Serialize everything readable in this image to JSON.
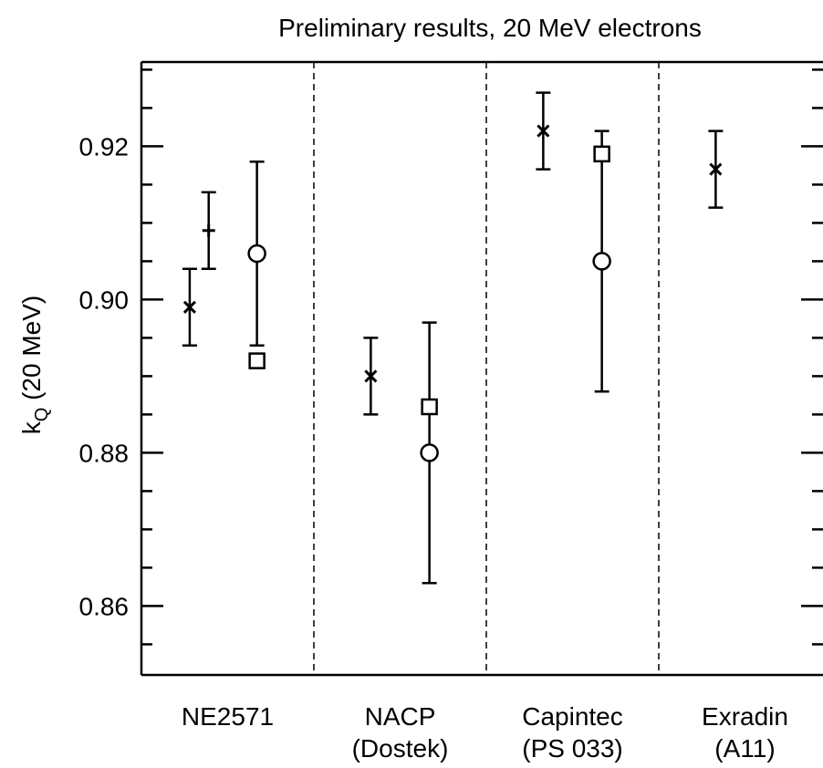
{
  "chart_data": {
    "type": "scatter",
    "title": "Preliminary results, 20 MeV electrons",
    "ylabel_main": "k",
    "ylabel_sub": "Q",
    "ylabel_rest": " (20 MeV)",
    "ylim": [
      0.851,
      0.931
    ],
    "yticks": [
      {
        "value": 0.86,
        "label": "0.86"
      },
      {
        "value": 0.88,
        "label": "0.88"
      },
      {
        "value": 0.9,
        "label": "0.90"
      },
      {
        "value": 0.92,
        "label": "0.92"
      }
    ],
    "minor_tick_step": 0.005,
    "grid": false,
    "groups": [
      {
        "label_line1": "NE2571",
        "label_line2": ""
      },
      {
        "label_line1": "NACP",
        "label_line2": "(Dostek)"
      },
      {
        "label_line1": "Capintec",
        "label_line2": "(PS 033)"
      },
      {
        "label_line1": "Exradin",
        "label_line2": "(A11)"
      }
    ],
    "points": [
      {
        "group": 0,
        "offset": 0.28,
        "marker": "x",
        "y": 0.899,
        "ylow": 0.894,
        "yhigh": 0.904
      },
      {
        "group": 0,
        "offset": 0.39,
        "marker": "plus",
        "y": 0.909,
        "ylow": 0.904,
        "yhigh": 0.914
      },
      {
        "group": 0,
        "offset": 0.67,
        "marker": "circle",
        "y": 0.906,
        "ylow": 0.894,
        "yhigh": 0.918
      },
      {
        "group": 0,
        "offset": 0.67,
        "marker": "square",
        "y": 0.892
      },
      {
        "group": 1,
        "offset": 0.33,
        "marker": "x",
        "y": 0.89,
        "ylow": 0.885,
        "yhigh": 0.895
      },
      {
        "group": 1,
        "offset": 0.67,
        "marker": "circle",
        "y": 0.88,
        "ylow": 0.863,
        "yhigh": 0.897
      },
      {
        "group": 1,
        "offset": 0.67,
        "marker": "square",
        "y": 0.886
      },
      {
        "group": 2,
        "offset": 0.33,
        "marker": "x",
        "y": 0.922,
        "ylow": 0.917,
        "yhigh": 0.927
      },
      {
        "group": 2,
        "offset": 0.67,
        "marker": "circle",
        "y": 0.905,
        "ylow": 0.888,
        "yhigh": 0.922
      },
      {
        "group": 2,
        "offset": 0.67,
        "marker": "square",
        "y": 0.919
      },
      {
        "group": 3,
        "offset": 0.33,
        "marker": "x",
        "y": 0.917,
        "ylow": 0.912,
        "yhigh": 0.922
      }
    ]
  }
}
